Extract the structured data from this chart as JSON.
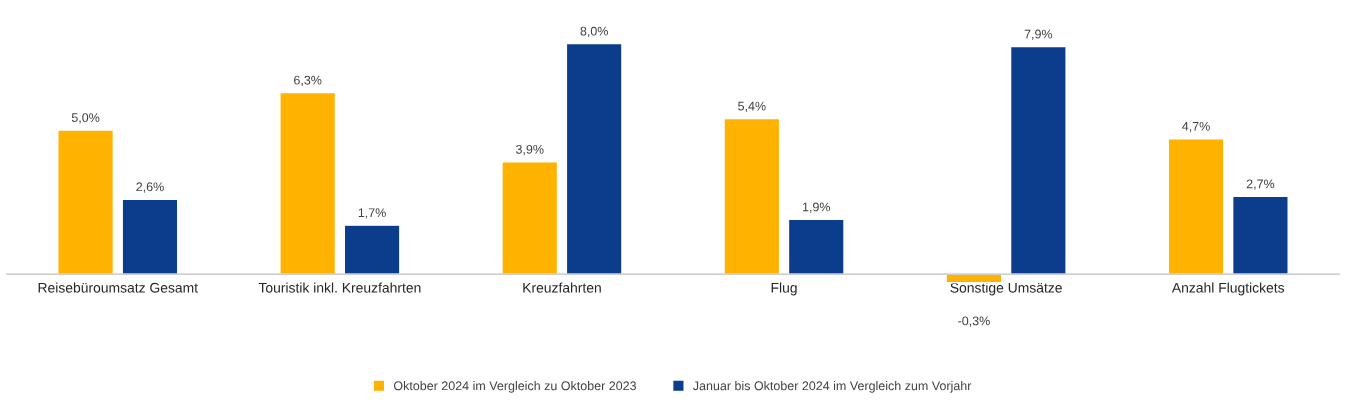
{
  "chart_data": {
    "type": "bar",
    "categories": [
      "Reisebüroumsatz Gesamt",
      "Touristik inkl. Kreuzfahrten",
      "Kreuzfahrten",
      "Flug",
      "Sonstige Umsätze",
      "Anzahl Flugtickets"
    ],
    "series": [
      {
        "name": "Oktober 2024 im Vergleich zu Oktober 2023",
        "color": "#ffb300",
        "values": [
          5.0,
          6.3,
          3.9,
          5.4,
          -0.3,
          4.7
        ],
        "value_labels": [
          "5,0%",
          "6,3%",
          "3,9%",
          "5,4%",
          "-0,3%",
          "4,7%"
        ]
      },
      {
        "name": "Januar bis Oktober 2024 im Vergleich zum Vorjahr",
        "color": "#0b3d8c",
        "values": [
          2.6,
          1.7,
          8.0,
          1.9,
          7.9,
          2.7
        ],
        "value_labels": [
          "2,6%",
          "1,7%",
          "8,0%",
          "1,9%",
          "7,9%",
          "2,7%"
        ]
      }
    ],
    "legend": "bottom",
    "grid": false
  }
}
